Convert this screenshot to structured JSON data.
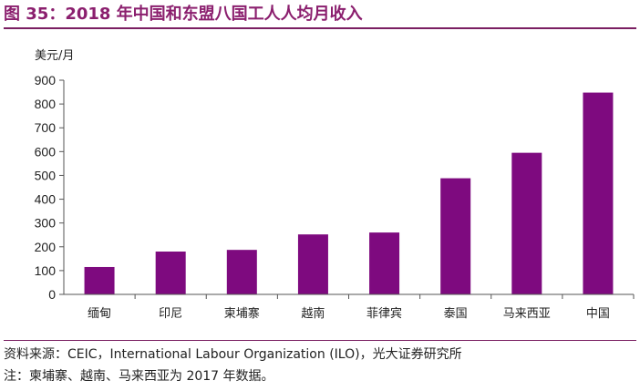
{
  "figure_title": "图 35：2018 年中国和东盟八国工人人均月收入",
  "colors": {
    "bar": "#7e0a7f",
    "title": "#8b1f6e",
    "rule": "#7a1f62"
  },
  "chart_data": {
    "type": "bar",
    "title": "",
    "ylabel": "美元/月",
    "xlabel": "",
    "categories": [
      "缅甸",
      "印尼",
      "柬埔寨",
      "越南",
      "菲律宾",
      "泰国",
      "马来西亚",
      "中国"
    ],
    "values": [
      115,
      180,
      187,
      252,
      260,
      488,
      595,
      848
    ],
    "ylim": [
      0,
      900
    ],
    "yticks": [
      0,
      100,
      200,
      300,
      400,
      500,
      600,
      700,
      800,
      900
    ],
    "grid": false,
    "legend": "none"
  },
  "footer": {
    "source": "资料来源：CEIC，International Labour Organization (ILO)，光大证券研究所",
    "note": "注：柬埔寨、越南、马来西亚为 2017 年数据。"
  }
}
